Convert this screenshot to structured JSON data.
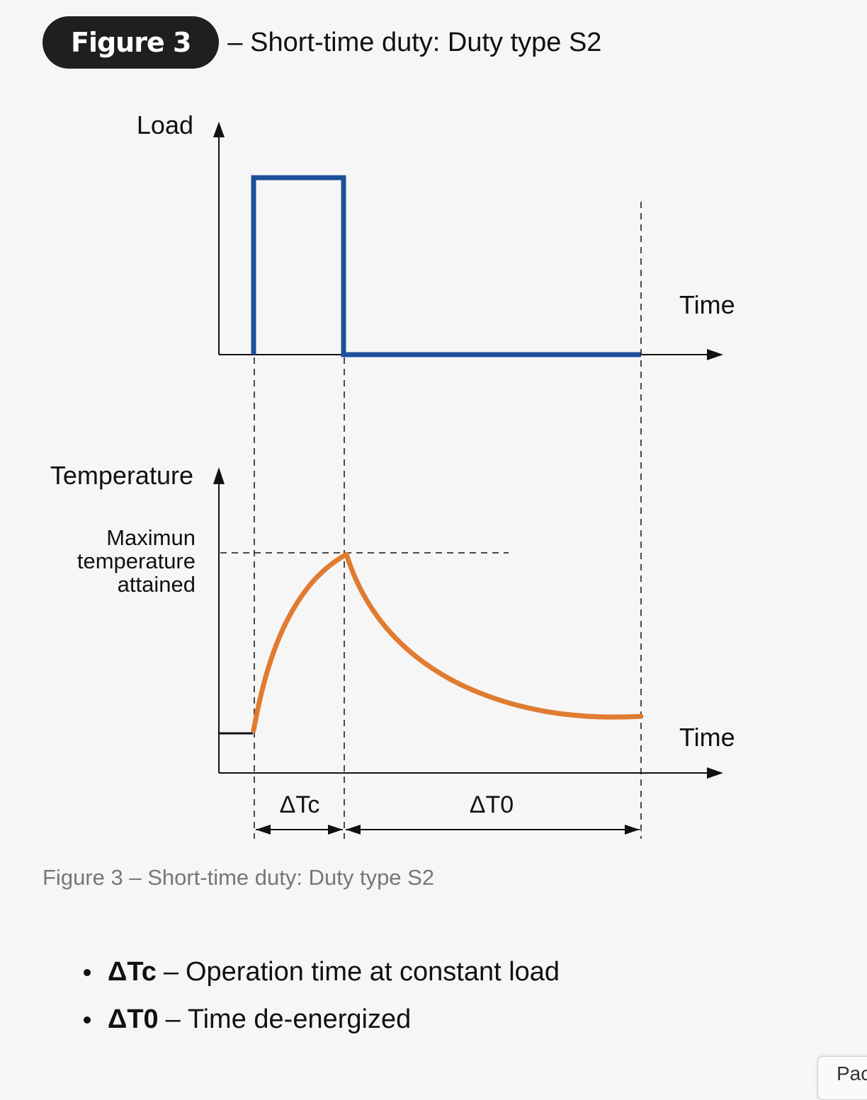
{
  "header": {
    "badge": "Figure 3",
    "title": "– Short-time duty: Duty type S2"
  },
  "diagram": {
    "load_axis_label": "Load",
    "load_time_label": "Time",
    "temp_axis_label": "Temperature",
    "max_temp_label": [
      "Maximun",
      "temperature",
      "attained"
    ],
    "temp_time_label": "Time",
    "interval_tc_label": "ΔTc",
    "interval_t0_label": "ΔT0",
    "colors": {
      "load_line": "#1d4f9a",
      "temperature_curve": "#e07b30",
      "axes": "#111111"
    }
  },
  "caption": "Figure 3 – Short-time duty: Duty type S2",
  "legend": [
    {
      "term": "ΔTc",
      "sep": "–",
      "desc": "Operation time at constant load"
    },
    {
      "term": "ΔT0",
      "sep": "–",
      "desc": "Time de-energized"
    }
  ],
  "corner_tab": "Pac"
}
